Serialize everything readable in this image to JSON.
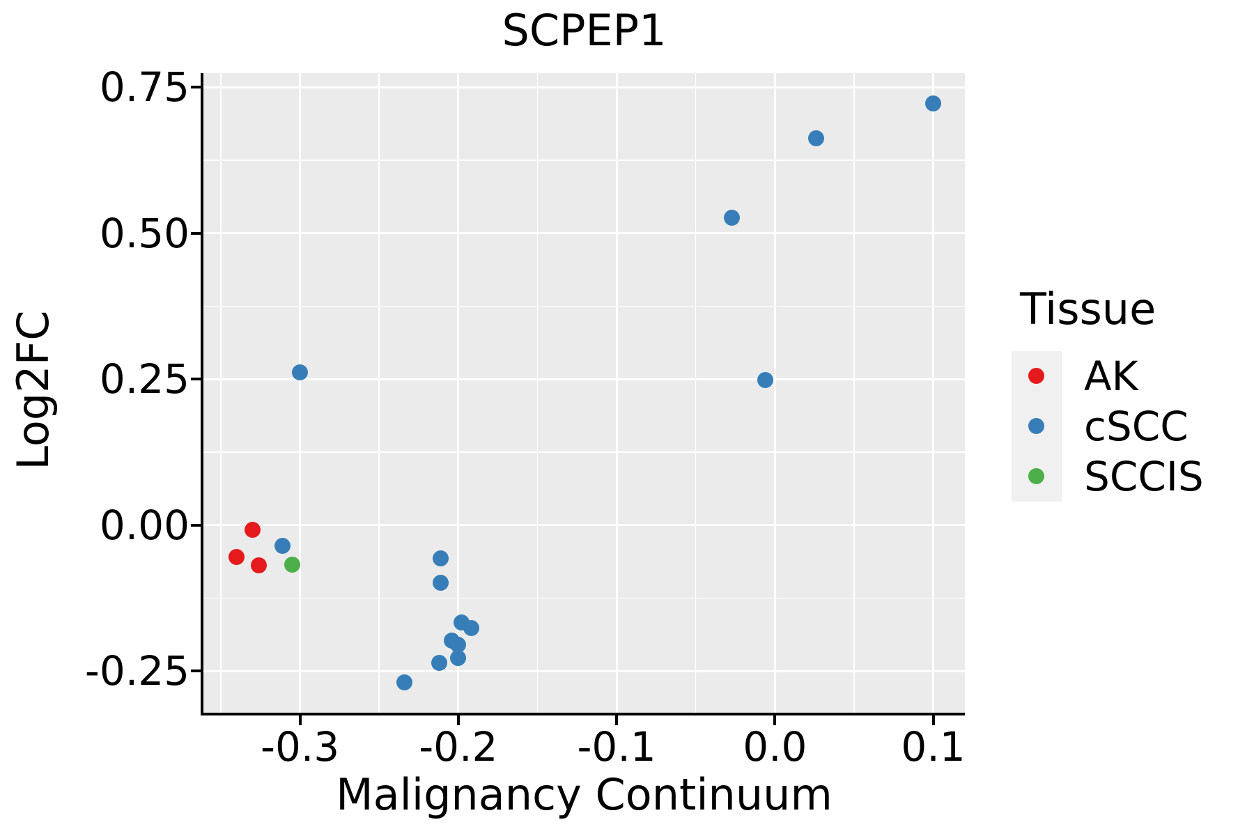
{
  "title": "SCPEP1",
  "chart_data": {
    "type": "scatter",
    "title": "SCPEP1",
    "xlabel": "Malignancy Continuum",
    "ylabel": "Log2FC",
    "xlim": [
      -0.361,
      0.12
    ],
    "ylim": [
      -0.321,
      0.774
    ],
    "x_major_ticks": [
      -0.3,
      -0.2,
      -0.1,
      0.0,
      0.1
    ],
    "x_tick_labels": [
      "-0.3",
      "-0.2",
      "-0.1",
      "0.0",
      "0.1"
    ],
    "x_minor_ticks": [
      -0.35,
      -0.25,
      -0.15,
      -0.05,
      0.05
    ],
    "y_major_ticks": [
      0.75,
      0.5,
      0.25,
      0.0,
      -0.25
    ],
    "y_tick_labels": [
      "0.75",
      "0.50",
      "0.25",
      "0.00",
      "-0.25"
    ],
    "y_minor_ticks": [
      0.625,
      0.375,
      0.125,
      -0.125
    ],
    "grid": true,
    "panel_background": "#EBEBEB",
    "gridline_color": "#FFFFFF",
    "legend_position": "right",
    "series": [
      {
        "name": "AK",
        "color": "#E41A1C",
        "points": [
          [
            -0.33,
            -0.008
          ],
          [
            -0.34,
            -0.055
          ],
          [
            -0.326,
            -0.069
          ]
        ]
      },
      {
        "name": "cSCC",
        "color": "#377EB8",
        "points": [
          [
            0.1,
            0.722
          ],
          [
            0.026,
            0.663
          ],
          [
            -0.027,
            0.526
          ],
          [
            -0.006,
            0.248
          ],
          [
            -0.3,
            0.262
          ],
          [
            -0.311,
            -0.035
          ],
          [
            -0.211,
            -0.057
          ],
          [
            -0.211,
            -0.098
          ],
          [
            -0.198,
            -0.167
          ],
          [
            -0.192,
            -0.176
          ],
          [
            -0.204,
            -0.197
          ],
          [
            -0.2,
            -0.205
          ],
          [
            -0.2,
            -0.227
          ],
          [
            -0.212,
            -0.236
          ],
          [
            -0.234,
            -0.269
          ]
        ]
      },
      {
        "name": "SCCIS",
        "color": "#4DAF4A",
        "points": [
          [
            -0.305,
            -0.067
          ]
        ]
      }
    ]
  },
  "legend": {
    "title": "Tissue",
    "items": [
      {
        "label": "AK",
        "color": "#E41A1C"
      },
      {
        "label": "cSCC",
        "color": "#377EB8"
      },
      {
        "label": "SCCIS",
        "color": "#4DAF4A"
      }
    ]
  }
}
